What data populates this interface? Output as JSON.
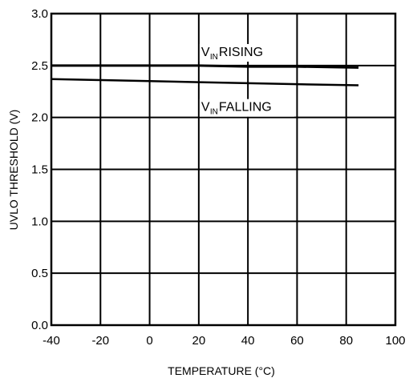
{
  "chart_data": {
    "type": "line",
    "title": "",
    "xlabel": "TEMPERATURE (°C)",
    "ylabel": "UVLO THRESHOLD (V)",
    "xlim": [
      -40,
      100
    ],
    "ylim": [
      0.0,
      3.0
    ],
    "x_ticks": [
      -40,
      -20,
      0,
      20,
      40,
      60,
      80,
      100
    ],
    "x_tick_labels": [
      "-40",
      "-20",
      "0",
      "20",
      "40",
      "60",
      "80",
      "100"
    ],
    "y_ticks": [
      0.0,
      0.5,
      1.0,
      1.5,
      2.0,
      2.5,
      3.0
    ],
    "y_tick_labels": [
      "0.0",
      "0.5",
      "1.0",
      "1.5",
      "2.0",
      "2.5",
      "3.0"
    ],
    "grid": true,
    "series": [
      {
        "x": [
          -40,
          -20,
          0,
          20,
          40,
          60,
          85
        ],
        "y": [
          2.5,
          2.5,
          2.5,
          2.5,
          2.49,
          2.49,
          2.48
        ],
        "color": "#000000"
      },
      {
        "x": [
          -40,
          -20,
          0,
          20,
          40,
          60,
          85
        ],
        "y": [
          2.37,
          2.36,
          2.35,
          2.34,
          2.33,
          2.32,
          2.31
        ],
        "color": "#000000"
      }
    ],
    "annotations": [
      {
        "main": "V",
        "sub": "IN",
        "rest": " RISING",
        "x": 21,
        "y": 2.63
      },
      {
        "main": "V",
        "sub": "IN",
        "rest": " FALLING",
        "x": 21,
        "y": 2.1
      }
    ]
  }
}
